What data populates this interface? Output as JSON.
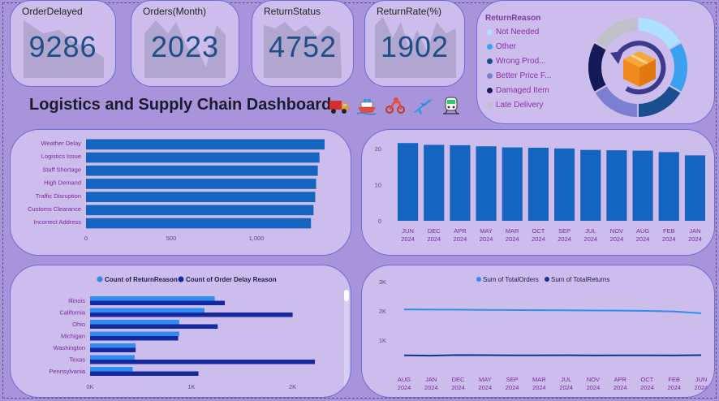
{
  "kpis": [
    {
      "title": "OrderDelayed",
      "value": "9286"
    },
    {
      "title": "Orders(Month)",
      "value": "2023"
    },
    {
      "title": "ReturnStatus",
      "value": "4752"
    },
    {
      "title": "ReturnRate(%)",
      "value": "1902"
    }
  ],
  "dashboard_title": "Logistics and Supply Chain Dashboard",
  "title_icons": [
    "truck-icon",
    "ship-icon",
    "scooter-icon",
    "airplane-icon",
    "train-icon"
  ],
  "return_reason": {
    "title": "ReturnReason",
    "items": [
      {
        "label": "Not Needed",
        "color": "#aee0ff"
      },
      {
        "label": "Other",
        "color": "#3aa0f0"
      },
      {
        "label": "Wrong Prod...",
        "color": "#1a4f8f"
      },
      {
        "label": "Better Price F...",
        "color": "#7b7fd0"
      },
      {
        "label": "Damaged Item",
        "color": "#141a55"
      },
      {
        "label": "Late Delivery",
        "color": "#c0c0c8"
      }
    ],
    "center_icon": "package-return-icon"
  },
  "colors": {
    "bar": "#1565c0",
    "return_count": "#2f8cf0",
    "delay_count": "#1428a0",
    "line_orders": "#2f8cf0",
    "line_returns": "#16308f"
  },
  "chart_data": [
    {
      "type": "bar",
      "orientation": "horizontal",
      "categories": [
        "Weather Delay",
        "Logistics Issue",
        "Staff Shortage",
        "High Demand",
        "Traffic Disruption",
        "Customs Clearance",
        "Incorrect Address"
      ],
      "values": [
        1400,
        1370,
        1360,
        1350,
        1345,
        1335,
        1320
      ],
      "xticks": [
        "0",
        "500",
        "1,000"
      ],
      "xlim": [
        0,
        1500
      ]
    },
    {
      "type": "bar",
      "categories": [
        "JUN 2024",
        "DEC 2024",
        "APR 2024",
        "MAY 2024",
        "MAR 2024",
        "OCT 2024",
        "SEP 2024",
        "JUL 2024",
        "NOV 2024",
        "AUG 2024",
        "FEB 2024",
        "JAN 2024"
      ],
      "values": [
        21.5,
        21.0,
        20.9,
        20.6,
        20.3,
        20.2,
        20.0,
        19.6,
        19.5,
        19.4,
        19.0,
        18.1
      ],
      "yticks": [
        "0",
        "10",
        "20"
      ],
      "ylim": [
        0,
        22
      ]
    },
    {
      "type": "bar",
      "orientation": "horizontal",
      "categories": [
        "Illinois",
        "California",
        "Ohio",
        "Michigan",
        "Washington",
        "Texas",
        "Pennsylvania"
      ],
      "series": [
        {
          "name": "Count of ReturnReason",
          "values": [
            1230,
            1130,
            880,
            880,
            450,
            440,
            420
          ]
        },
        {
          "name": "Count of Order Delay Reason",
          "values": [
            1330,
            2000,
            1260,
            870,
            450,
            2220,
            1070
          ]
        }
      ],
      "xticks": [
        "0K",
        "1K",
        "2K"
      ],
      "xlim": [
        0,
        2500
      ]
    },
    {
      "type": "line",
      "categories": [
        "AUG 2024",
        "JAN 2024",
        "DEC 2024",
        "MAY 2024",
        "SEP 2024",
        "MAR 2024",
        "JUL 2024",
        "NOV 2024",
        "APR 2024",
        "OCT 2024",
        "FEB 2024",
        "JUN 2024"
      ],
      "series": [
        {
          "name": "Sum of TotalOrders",
          "values": [
            2050,
            2045,
            2040,
            2035,
            2030,
            2025,
            2020,
            2015,
            2010,
            2000,
            1980,
            1920
          ]
        },
        {
          "name": "Sum of TotalReturns",
          "values": [
            480,
            470,
            490,
            485,
            480,
            478,
            482,
            476,
            480,
            478,
            474,
            485
          ]
        }
      ],
      "yticks": [
        "1K",
        "2K",
        "3K"
      ],
      "ylim": [
        0,
        3000
      ]
    }
  ]
}
